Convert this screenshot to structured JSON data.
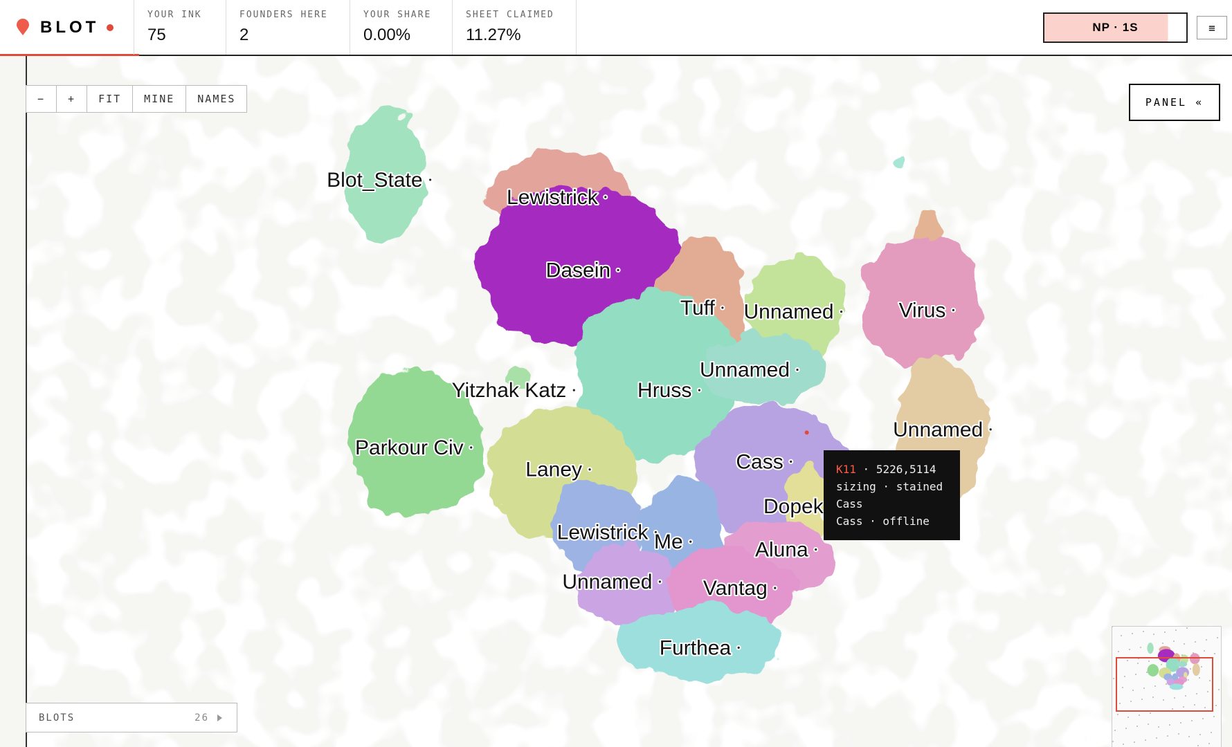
{
  "header": {
    "logo": "BLOT",
    "stats": [
      {
        "label": "YOUR INK",
        "value": "75"
      },
      {
        "label": "FOUNDERS HERE",
        "value": "2"
      },
      {
        "label": "YOUR SHARE",
        "value": "0.00%"
      },
      {
        "label": "SHEET CLAIMED",
        "value": "11.27%"
      }
    ],
    "network_button": "NP · 1S",
    "menu": "≡"
  },
  "toolbar": [
    "−",
    "+",
    "FIT",
    "MINE",
    "NAMES"
  ],
  "panel_button": "PANEL «",
  "territories": [
    "Blot_State",
    "Lewistrick",
    "Dasein",
    "Tuff",
    "Unnamed",
    "Virus",
    "Unnamed",
    "Hruss",
    "Unnamed",
    "Yitzhak Katz",
    "Parkour Civ",
    "Laney",
    "Cass",
    "Dopek",
    "Lewistrick",
    "Me",
    "Aluna",
    "Unnamed",
    "Vantag",
    "Furthea"
  ],
  "tooltip": {
    "id": "K11",
    "coords": "· 5226,5114",
    "lines": [
      "sizing · stained",
      "Cass",
      "Cass · offline"
    ]
  },
  "blots_panel": {
    "label": "BLOTS",
    "count": "26"
  }
}
